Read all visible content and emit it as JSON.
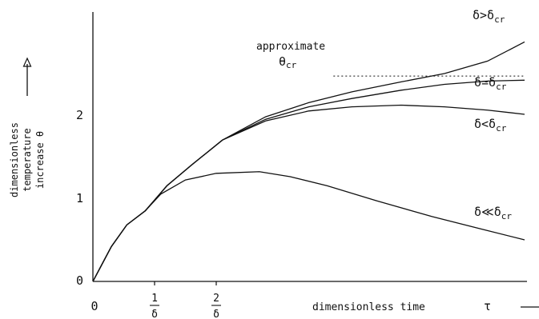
{
  "chart_data": {
    "type": "line",
    "title": "",
    "xlabel": "dimensionless time",
    "xlabel_symbol": "τ",
    "ylabel_lines": [
      "dimensionless",
      "temperature",
      "increase θ"
    ],
    "x_ticks": [
      {
        "value": 0,
        "label": "0"
      },
      {
        "num": "1",
        "den": "δ",
        "value": 1
      },
      {
        "num": "2",
        "den": "δ",
        "value": 2
      }
    ],
    "y_ticks": [
      {
        "value": 0,
        "label": "0"
      },
      {
        "value": 1,
        "label": "1"
      },
      {
        "value": 2,
        "label": "2"
      }
    ],
    "xlim": [
      0,
      7.1
    ],
    "ylim": [
      0,
      3.0
    ],
    "grid": false,
    "reference_line": {
      "label_top": "approximate",
      "label_sym": "θ",
      "label_sub": "cr",
      "y": 2.47,
      "x_range": [
        3.9,
        7.0
      ],
      "style": "dotted"
    },
    "series": [
      {
        "id": "s1",
        "label_main": "δ>δ",
        "label_sub": "cr",
        "x": [
          0,
          0.3,
          0.55,
          0.85,
          1.2,
          1.6,
          2.1,
          2.8,
          3.5,
          4.2,
          5.0,
          5.7,
          6.4,
          7.0
        ],
        "y": [
          0,
          0.42,
          0.68,
          0.85,
          1.15,
          1.4,
          1.7,
          1.98,
          2.15,
          2.28,
          2.4,
          2.5,
          2.65,
          2.88
        ]
      },
      {
        "id": "s2",
        "label_main": "δ≃δ",
        "label_sub": "cr",
        "x": [
          0,
          0.3,
          0.55,
          0.85,
          1.2,
          1.6,
          2.1,
          2.8,
          3.5,
          4.2,
          5.0,
          5.7,
          6.4,
          7.0
        ],
        "y": [
          0,
          0.42,
          0.68,
          0.85,
          1.15,
          1.4,
          1.7,
          1.95,
          2.1,
          2.2,
          2.3,
          2.37,
          2.41,
          2.42
        ]
      },
      {
        "id": "s3",
        "label_main": "δ<δ",
        "label_sub": "cr",
        "x": [
          0,
          0.3,
          0.55,
          0.85,
          1.2,
          1.6,
          2.1,
          2.8,
          3.5,
          4.2,
          5.0,
          5.7,
          6.4,
          7.0
        ],
        "y": [
          0,
          0.42,
          0.68,
          0.85,
          1.15,
          1.4,
          1.7,
          1.93,
          2.05,
          2.1,
          2.12,
          2.1,
          2.06,
          2.01
        ]
      },
      {
        "id": "s4",
        "label_main": "δ≪δ",
        "label_sub": "cr",
        "x": [
          0,
          0.3,
          0.55,
          0.85,
          1.1,
          1.5,
          2.0,
          2.7,
          3.2,
          3.8,
          4.6,
          5.5,
          6.3,
          7.0
        ],
        "y": [
          0,
          0.42,
          0.68,
          0.85,
          1.05,
          1.22,
          1.3,
          1.32,
          1.26,
          1.15,
          0.97,
          0.78,
          0.63,
          0.5
        ]
      }
    ]
  }
}
